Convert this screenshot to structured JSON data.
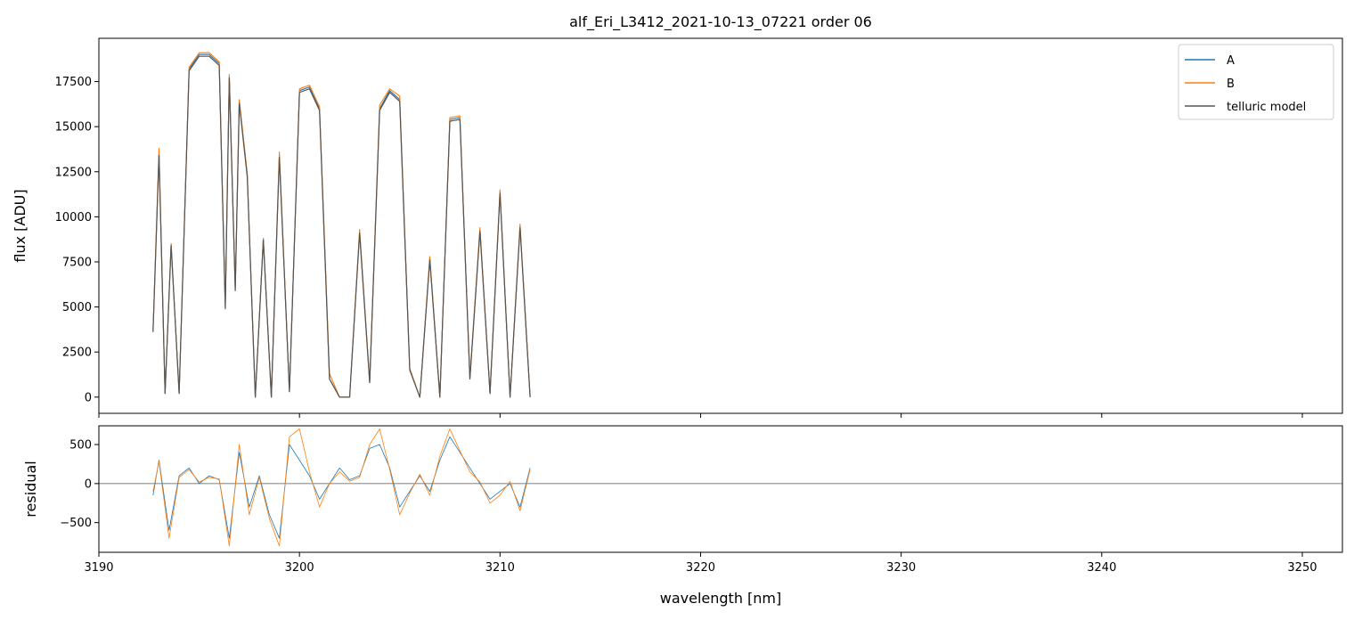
{
  "chart_data": [
    {
      "type": "line",
      "panel": "main",
      "title": "alf_Eri_L3412_2021-10-13_07221  order 06",
      "xlabel": "",
      "ylabel": "flux [ADU]",
      "xlim": [
        3190,
        3252
      ],
      "ylim": [
        -900,
        19900
      ],
      "yticks": [
        0,
        2500,
        5000,
        7500,
        10000,
        12500,
        15000,
        17500
      ],
      "ytick_labels": [
        "0",
        "2500",
        "5000",
        "7500",
        "10000",
        "12500",
        "15000",
        "17500"
      ],
      "legend": {
        "placement": "top-right",
        "entries": [
          {
            "label": "A",
            "color": "#1f77b4"
          },
          {
            "label": "B",
            "color": "#ff7f0e"
          },
          {
            "label": "telluric model",
            "color": "#555555"
          }
        ]
      },
      "series": [
        {
          "name": "A",
          "color": "#1f77b4",
          "x": [
            3192.7,
            3193.0,
            3193.3,
            3193.6,
            3194.0,
            3194.5,
            3195.0,
            3195.5,
            3196.0,
            3196.3,
            3196.5,
            3196.8,
            3197.0,
            3197.4,
            3197.8,
            3198.2,
            3198.6,
            3199.0,
            3199.5,
            3200.0,
            3200.5,
            3201.0,
            3201.5,
            3202.0,
            3202.5,
            3203.0,
            3203.5,
            3204.0,
            3204.5,
            3205.0,
            3205.5,
            3206.0,
            3206.5,
            3207.0,
            3207.5,
            3208.0,
            3208.5,
            3209.0,
            3209.5,
            3210.0,
            3210.5,
            3211.0,
            3211.5
          ],
          "y": [
            3700,
            13500,
            200,
            8500,
            200,
            18200,
            19000,
            19000,
            18500,
            5000,
            17800,
            6000,
            16400,
            12300,
            0,
            8800,
            0,
            13400,
            300,
            17000,
            17200,
            16000,
            1000,
            0,
            0,
            9200,
            800,
            16000,
            17000,
            16500,
            1500,
            0,
            7700,
            0,
            15400,
            15500,
            1000,
            9300,
            200,
            11400,
            0,
            9500,
            0
          ]
        },
        {
          "name": "B",
          "color": "#ff7f0e",
          "x": [
            3192.7,
            3193.0,
            3193.3,
            3193.6,
            3194.0,
            3194.5,
            3195.0,
            3195.5,
            3196.0,
            3196.3,
            3196.5,
            3196.8,
            3197.0,
            3197.4,
            3197.8,
            3198.2,
            3198.6,
            3199.0,
            3199.5,
            3200.0,
            3200.5,
            3201.0,
            3201.5,
            3202.0,
            3202.5,
            3203.0,
            3203.5,
            3204.0,
            3204.5,
            3205.0,
            3205.5,
            3206.0,
            3206.5,
            3207.0,
            3207.5,
            3208.0,
            3208.5,
            3209.0,
            3209.5,
            3210.0,
            3210.5,
            3211.0,
            3211.5
          ],
          "y": [
            3700,
            13800,
            200,
            8500,
            200,
            18300,
            19100,
            19100,
            18600,
            5200,
            17900,
            6100,
            16500,
            12400,
            0,
            8800,
            0,
            13600,
            300,
            17100,
            17300,
            16100,
            1300,
            0,
            0,
            9300,
            900,
            16200,
            17100,
            16700,
            1600,
            0,
            7800,
            0,
            15500,
            15600,
            1100,
            9400,
            200,
            11500,
            0,
            9600,
            0
          ]
        },
        {
          "name": "telluric model",
          "color": "#555555",
          "x": [
            3192.7,
            3193.0,
            3193.3,
            3193.6,
            3194.0,
            3194.5,
            3195.0,
            3195.5,
            3196.0,
            3196.3,
            3196.5,
            3196.8,
            3197.0,
            3197.4,
            3197.8,
            3198.2,
            3198.6,
            3199.0,
            3199.5,
            3200.0,
            3200.5,
            3201.0,
            3201.5,
            3202.0,
            3202.5,
            3203.0,
            3203.5,
            3204.0,
            3204.5,
            3205.0,
            3205.5,
            3206.0,
            3206.5,
            3207.0,
            3207.5,
            3208.0,
            3208.5,
            3209.0,
            3209.5,
            3210.0,
            3210.5,
            3211.0,
            3211.5
          ],
          "y": [
            3600,
            13400,
            200,
            8400,
            200,
            18100,
            18900,
            18900,
            18400,
            4900,
            17700,
            5900,
            16300,
            12200,
            0,
            8700,
            0,
            13300,
            300,
            16900,
            17100,
            15900,
            1000,
            0,
            0,
            9100,
            800,
            15900,
            16900,
            16400,
            1500,
            0,
            7600,
            0,
            15300,
            15400,
            1000,
            9200,
            200,
            11300,
            0,
            9400,
            0
          ]
        }
      ]
    },
    {
      "type": "line",
      "panel": "residual",
      "title": "",
      "xlabel": "wavelength [nm]",
      "ylabel": "residual",
      "xlim": [
        3190,
        3252
      ],
      "ylim": [
        -880,
        740
      ],
      "yticks": [
        -500,
        0,
        500
      ],
      "ytick_labels": [
        "−500",
        "0",
        "500"
      ],
      "xticks": [
        3190,
        3200,
        3210,
        3220,
        3230,
        3240,
        3250
      ],
      "xtick_labels": [
        "3190",
        "3200",
        "3210",
        "3220",
        "3230",
        "3240",
        "3250"
      ],
      "reference_line": 0,
      "series": [
        {
          "name": "A",
          "color": "#1f77b4",
          "x": [
            3192.7,
            3193.0,
            3193.5,
            3194.0,
            3194.5,
            3195.0,
            3195.5,
            3196.0,
            3196.5,
            3197.0,
            3197.5,
            3198.0,
            3198.5,
            3199.0,
            3199.5,
            3200.0,
            3200.5,
            3201.0,
            3201.5,
            3202.0,
            3202.5,
            3203.0,
            3203.5,
            3204.0,
            3204.5,
            3205.0,
            3205.5,
            3206.0,
            3206.5,
            3207.0,
            3207.5,
            3208.0,
            3208.5,
            3209.0,
            3209.5,
            3210.0,
            3210.5,
            3211.0,
            3211.5
          ],
          "y": [
            -150,
            300,
            -600,
            100,
            200,
            0,
            100,
            50,
            -700,
            400,
            -300,
            100,
            -400,
            -700,
            500,
            300,
            100,
            -200,
            0,
            200,
            50,
            100,
            450,
            500,
            200,
            -300,
            -100,
            100,
            -100,
            300,
            600,
            400,
            200,
            0,
            -200,
            -100,
            0,
            -300,
            200
          ]
        },
        {
          "name": "B",
          "color": "#ff7f0e",
          "x": [
            3192.7,
            3193.0,
            3193.5,
            3194.0,
            3194.5,
            3195.0,
            3195.5,
            3196.0,
            3196.5,
            3197.0,
            3197.5,
            3198.0,
            3198.5,
            3199.0,
            3199.5,
            3200.0,
            3200.5,
            3201.0,
            3201.5,
            3202.0,
            3202.5,
            3203.0,
            3203.5,
            3204.0,
            3204.5,
            3205.0,
            3205.5,
            3206.0,
            3206.5,
            3207.0,
            3207.5,
            3208.0,
            3208.5,
            3209.0,
            3209.5,
            3210.0,
            3210.5,
            3211.0,
            3211.5
          ],
          "y": [
            -100,
            280,
            -700,
            80,
            180,
            20,
            80,
            60,
            -800,
            500,
            -400,
            80,
            -450,
            -800,
            600,
            700,
            150,
            -300,
            0,
            150,
            30,
            80,
            500,
            700,
            180,
            -400,
            -120,
            120,
            -150,
            350,
            700,
            420,
            150,
            20,
            -250,
            -150,
            30,
            -350,
            180
          ]
        }
      ]
    }
  ]
}
